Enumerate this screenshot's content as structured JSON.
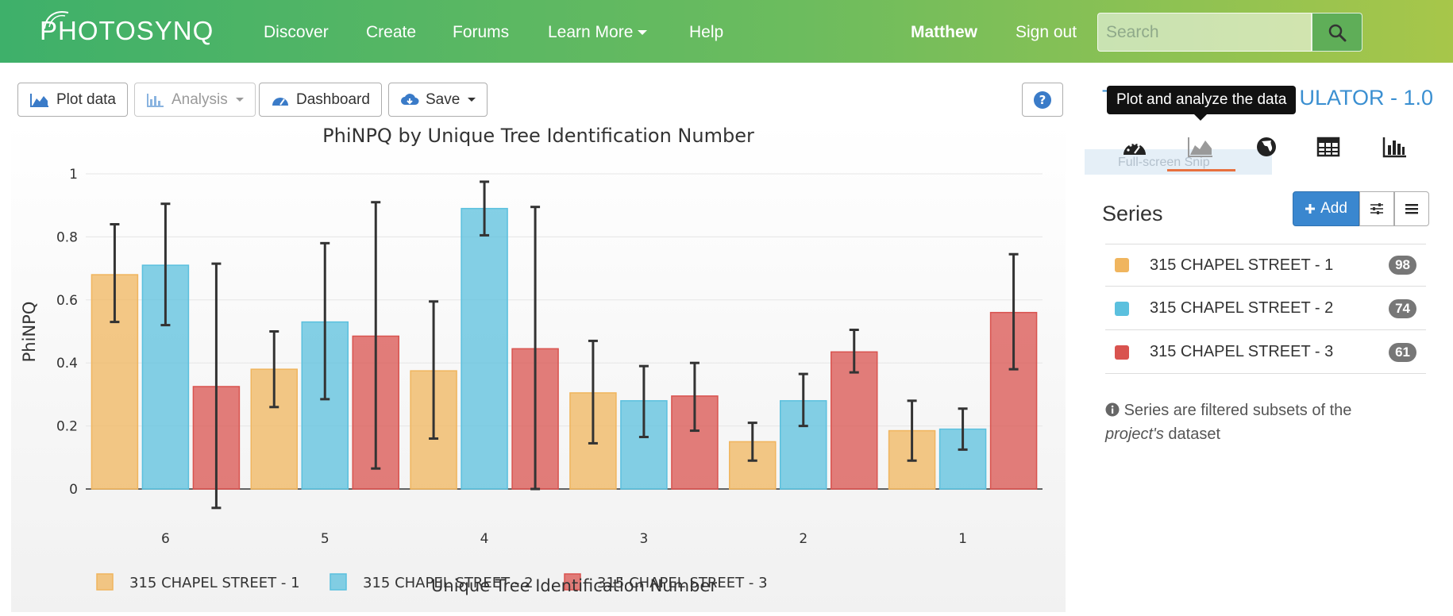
{
  "navbar": {
    "brand": "PHOTOSYNQ",
    "links": [
      "Discover",
      "Create",
      "Forums",
      "Learn More",
      "Help"
    ],
    "user": "Matthew",
    "signout": "Sign out",
    "search_placeholder": "Search"
  },
  "toolbar": {
    "plot": "Plot data",
    "analysis": "Analysis",
    "dashboard": "Dashboard",
    "save": "Save"
  },
  "right_panel": {
    "title_left": "T",
    "title_right": "ULATOR - 1.0",
    "tooltip": "Plot and analyze the data",
    "snip": "Full-screen Snip",
    "icons": [
      "dashboard-icon",
      "area-chart-icon",
      "globe-icon",
      "table-icon",
      "bar-chart-icon"
    ],
    "series_heading": "Series",
    "add_label": "Add",
    "series": [
      {
        "name": "315 CHAPEL STREET - 1",
        "count": "98",
        "color": "#f0b55e"
      },
      {
        "name": "315 CHAPEL STREET - 2",
        "count": "74",
        "color": "#5bc0de"
      },
      {
        "name": "315 CHAPEL STREET - 3",
        "count": "61",
        "color": "#d9534f"
      }
    ],
    "note_rest": "Series are filtered subsets of the",
    "note_em": "project's",
    "note_tail": "dataset"
  },
  "chart_data": {
    "type": "bar",
    "title": "PhiNPQ by Unique Tree Identification Number",
    "xlabel": "Unique Tree Identification Number",
    "ylabel": "PhiNPQ",
    "categories": [
      "6",
      "5",
      "4",
      "3",
      "2",
      "1"
    ],
    "ylim": [
      0,
      1
    ],
    "yticks": [
      "0",
      "0.2",
      "0.4",
      "0.6",
      "0.8",
      "1"
    ],
    "legend_position": "bottom",
    "series": [
      {
        "name": "315 CHAPEL STREET - 1",
        "color": "#f0b55e",
        "values": [
          0.68,
          0.38,
          0.375,
          0.305,
          0.15,
          0.185
        ],
        "error_low": [
          0.53,
          0.26,
          0.16,
          0.145,
          0.09,
          0.09
        ],
        "error_high": [
          0.84,
          0.5,
          0.595,
          0.47,
          0.21,
          0.28
        ]
      },
      {
        "name": "315 CHAPEL STREET - 2",
        "color": "#5bc0de",
        "values": [
          0.71,
          0.53,
          0.89,
          0.28,
          0.28,
          0.19
        ],
        "error_low": [
          0.52,
          0.285,
          0.805,
          0.165,
          0.2,
          0.125
        ],
        "error_high": [
          0.905,
          0.78,
          0.975,
          0.39,
          0.365,
          0.255
        ]
      },
      {
        "name": "315 CHAPEL STREET - 3",
        "color": "#d9534f",
        "values": [
          0.325,
          0.485,
          0.445,
          0.295,
          0.435,
          0.56
        ],
        "error_low": [
          -0.06,
          0.065,
          0.0,
          0.185,
          0.37,
          0.38
        ],
        "error_high": [
          0.715,
          0.91,
          0.895,
          0.4,
          0.505,
          0.745
        ]
      }
    ]
  }
}
